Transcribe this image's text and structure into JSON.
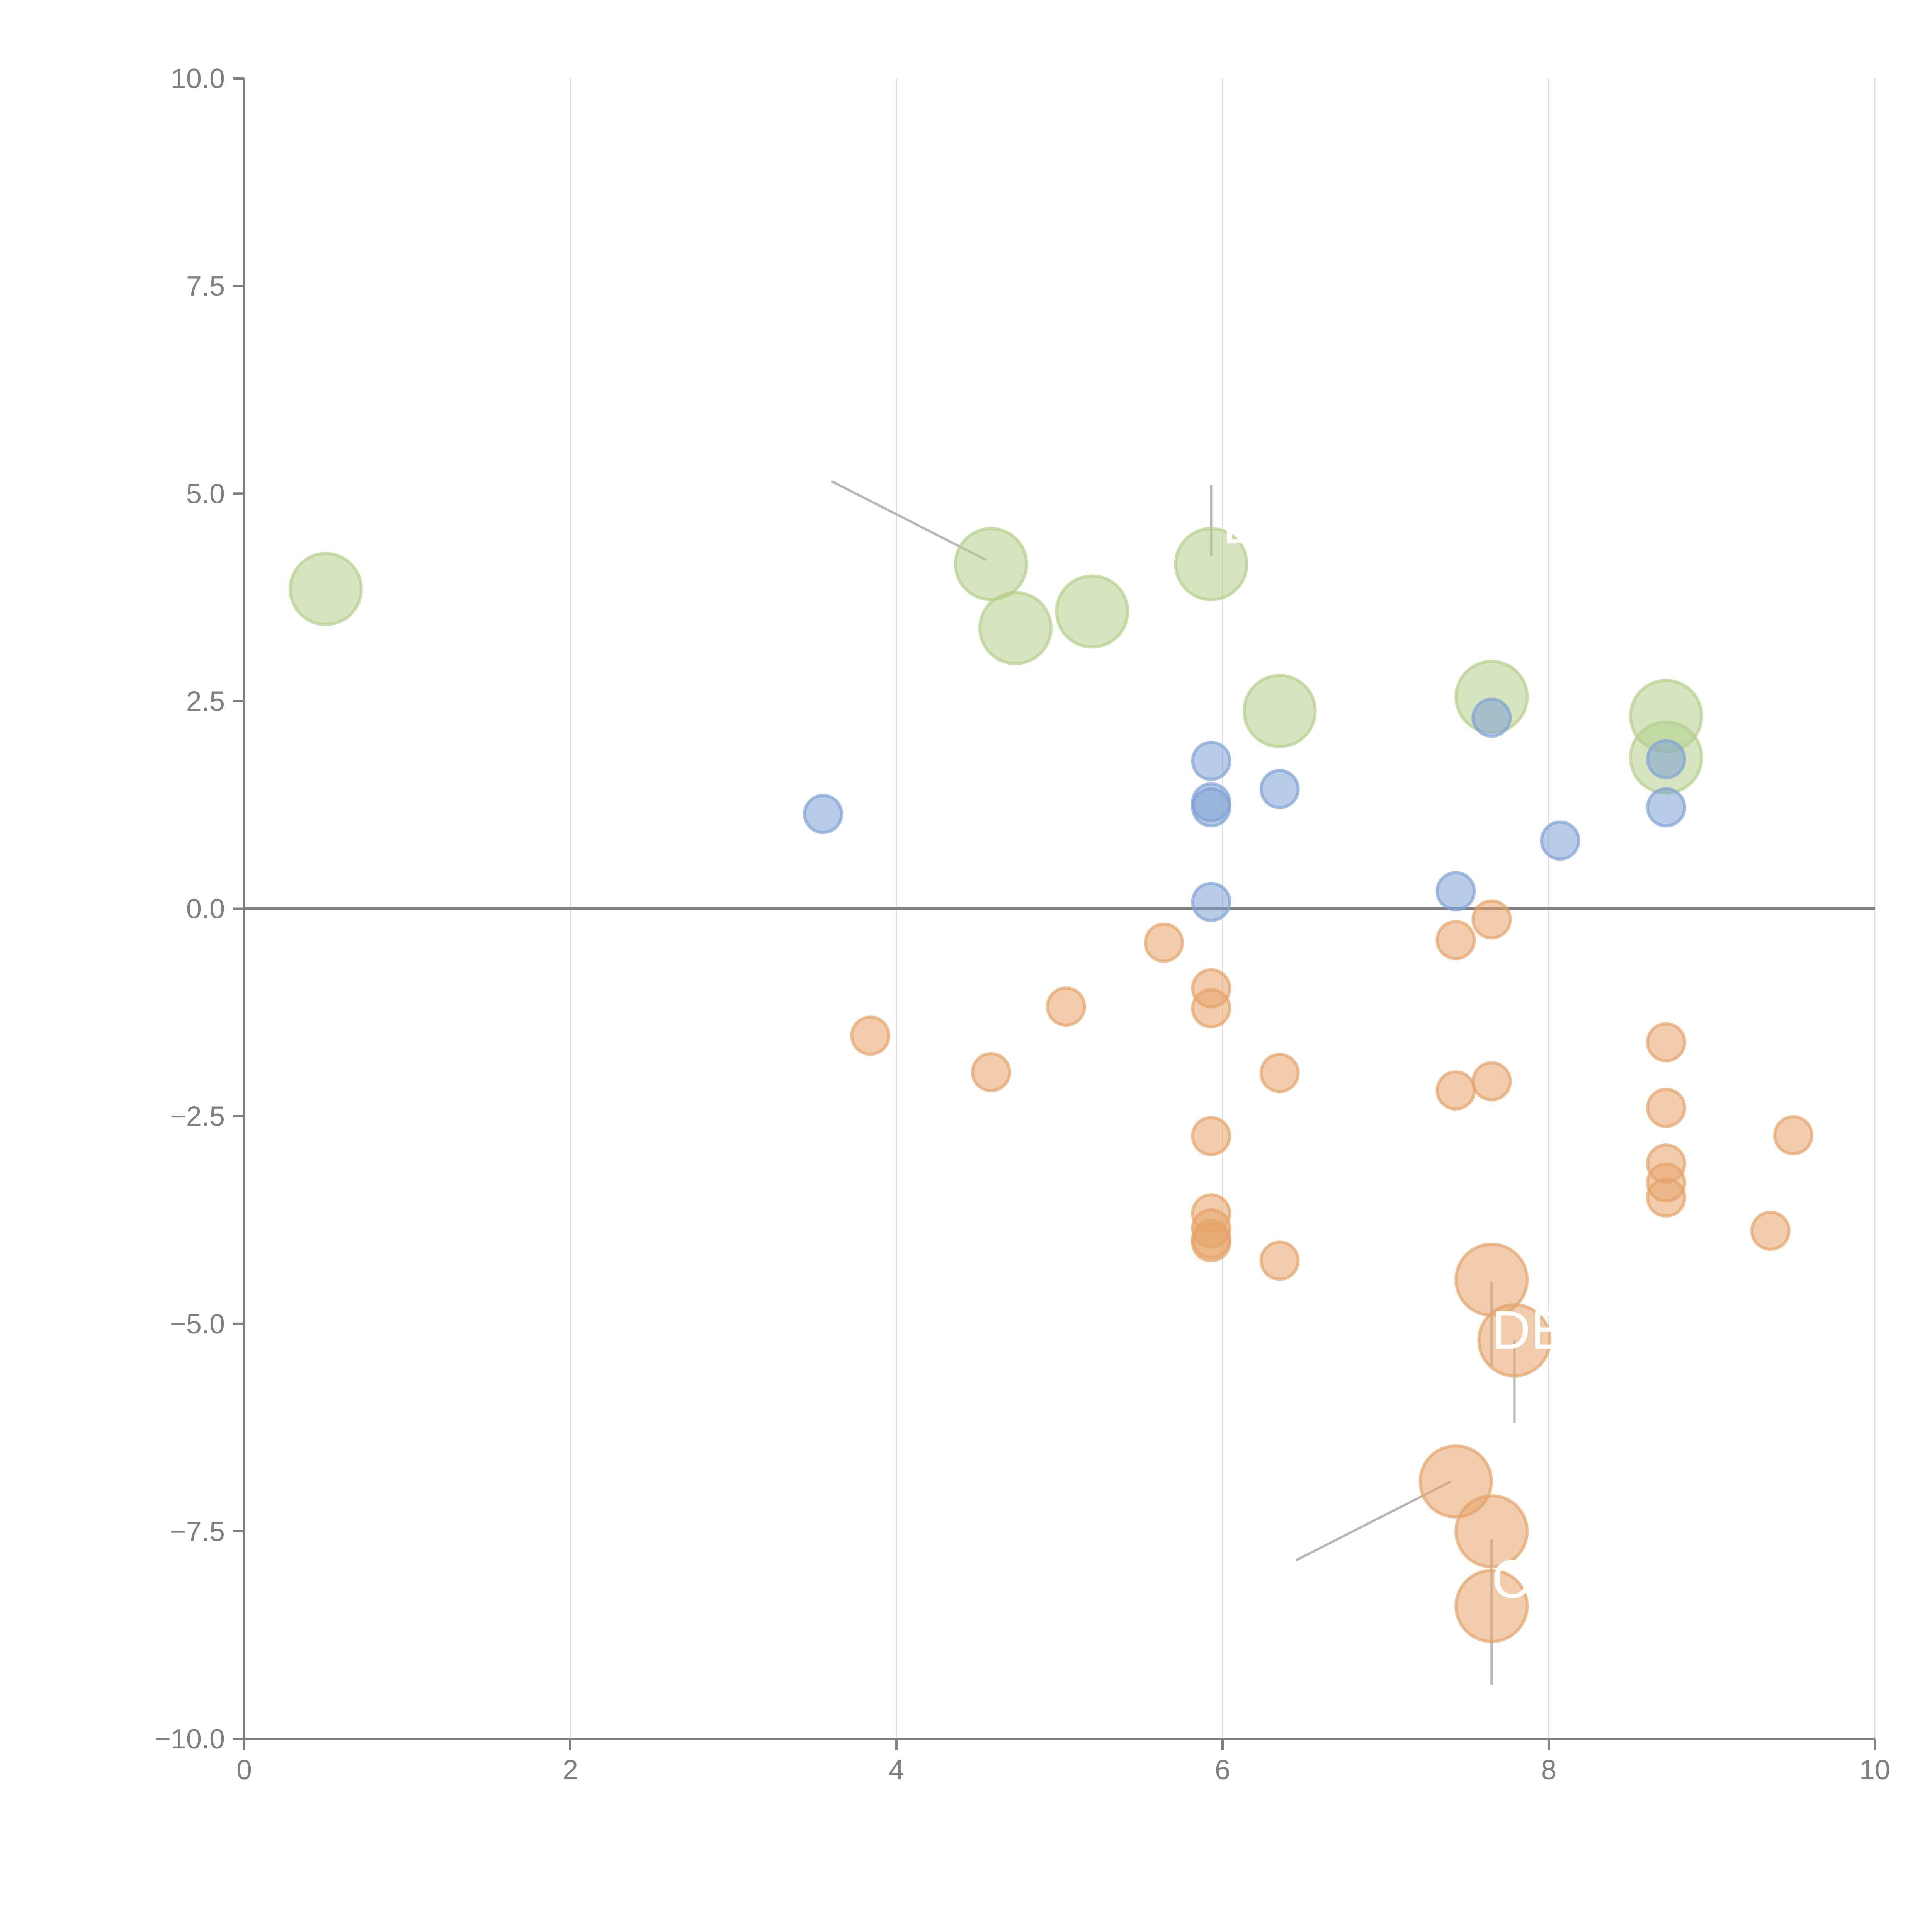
{
  "chart_data": {
    "type": "scatter",
    "title": "",
    "xlabel": "",
    "ylabel": "",
    "xlim": [
      0,
      10
    ],
    "ylim": [
      -10,
      10
    ],
    "grid": "vertical",
    "x_ticks": [
      "0",
      "2",
      "4",
      "6",
      "8",
      "10"
    ],
    "y_ticks": [
      "10.0",
      "7.5",
      "5.0",
      "2.5",
      "0.0",
      "−2.5",
      "−5.0",
      "−7.5",
      "−10.0"
    ],
    "zero_line": true,
    "series": [
      {
        "name": "green-large",
        "color": "#b5d08c",
        "size": "large",
        "points": [
          [
            0.5,
            3.85
          ],
          [
            4.58,
            4.15
          ],
          [
            4.73,
            3.38
          ],
          [
            5.2,
            3.58
          ],
          [
            5.93,
            4.15
          ],
          [
            6.35,
            2.38
          ],
          [
            7.65,
            2.55
          ],
          [
            8.72,
            2.32
          ],
          [
            8.72,
            1.82
          ]
        ]
      },
      {
        "name": "blue-small",
        "color": "#7fa3d4",
        "size": "small",
        "points": [
          [
            3.55,
            1.14
          ],
          [
            5.93,
            1.78
          ],
          [
            5.93,
            1.28
          ],
          [
            5.93,
            1.22
          ],
          [
            5.93,
            0.08
          ],
          [
            6.35,
            1.44
          ],
          [
            7.65,
            2.3
          ],
          [
            7.43,
            0.21
          ],
          [
            8.07,
            0.82
          ],
          [
            8.72,
            1.8
          ],
          [
            8.72,
            1.22
          ]
        ]
      },
      {
        "name": "orange-small",
        "color": "#e6a46a",
        "size": "small",
        "points": [
          [
            3.84,
            -1.53
          ],
          [
            4.58,
            -1.97
          ],
          [
            5.04,
            -1.18
          ],
          [
            5.64,
            -0.41
          ],
          [
            5.93,
            -0.96
          ],
          [
            5.93,
            -1.2
          ],
          [
            5.93,
            -2.74
          ],
          [
            5.93,
            -3.67
          ],
          [
            5.93,
            -3.85
          ],
          [
            5.93,
            -3.98
          ],
          [
            5.93,
            -4.02
          ],
          [
            6.35,
            -1.98
          ],
          [
            6.35,
            -4.24
          ],
          [
            7.43,
            -0.38
          ],
          [
            7.43,
            -2.19
          ],
          [
            7.65,
            -0.13
          ],
          [
            7.65,
            -2.08
          ],
          [
            8.72,
            -1.61
          ],
          [
            8.72,
            -2.4
          ],
          [
            8.72,
            -3.07
          ],
          [
            8.72,
            -3.3
          ],
          [
            8.72,
            -3.48
          ],
          [
            9.36,
            -3.88
          ],
          [
            9.5,
            -2.73
          ]
        ]
      },
      {
        "name": "orange-large",
        "color": "#e6a46a",
        "size": "large",
        "points": [
          [
            7.65,
            -4.47
          ],
          [
            7.79,
            -5.2
          ],
          [
            7.43,
            -6.9
          ],
          [
            7.65,
            -7.5
          ],
          [
            7.65,
            -8.4
          ]
        ]
      }
    ],
    "annotations": [
      {
        "text": "D",
        "x": 6.0,
        "y": 4.4
      },
      {
        "text": "DE",
        "x": 7.65,
        "y": -5.3
      },
      {
        "text": "C",
        "x": 7.65,
        "y": -8.3
      }
    ]
  }
}
